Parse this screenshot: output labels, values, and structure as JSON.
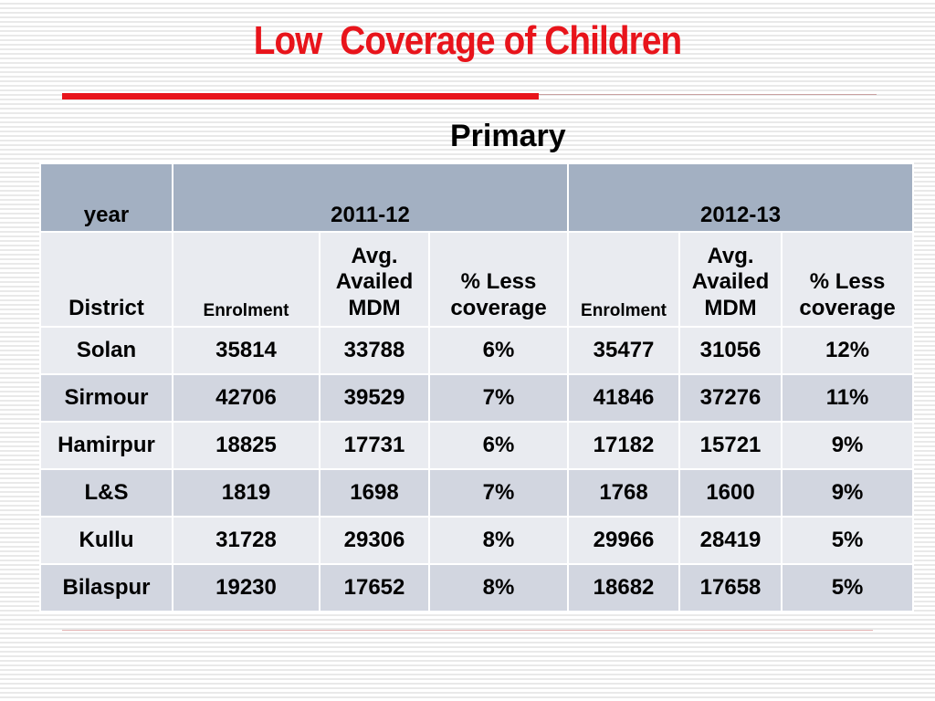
{
  "slide": {
    "title": "Low  Coverage of Children",
    "subtitle": "Primary"
  },
  "table": {
    "year_label": "year",
    "years": [
      "2011-12",
      "2012-13"
    ],
    "district_label": "District",
    "col_enrolment": "Enrolment",
    "col_avg_mdm": "Avg. Availed MDM",
    "col_less": "% Less coverage",
    "rows": [
      {
        "district": "Solan",
        "enr1": "35814",
        "mdm1": "33788",
        "less1": "6%",
        "enr2": "35477",
        "mdm2": "31056",
        "less2": "12%"
      },
      {
        "district": "Sirmour",
        "enr1": "42706",
        "mdm1": "39529",
        "less1": "7%",
        "enr2": "41846",
        "mdm2": "37276",
        "less2": "11%"
      },
      {
        "district": "Hamirpur",
        "enr1": "18825",
        "mdm1": "17731",
        "less1": "6%",
        "enr2": "17182",
        "mdm2": "15721",
        "less2": "9%"
      },
      {
        "district": "L&S",
        "enr1": "1819",
        "mdm1": "1698",
        "less1": "7%",
        "enr2": "1768",
        "mdm2": "1600",
        "less2": "9%"
      },
      {
        "district": "Kullu",
        "enr1": "31728",
        "mdm1": "29306",
        "less1": "8%",
        "enr2": "29966",
        "mdm2": "28419",
        "less2": "5%"
      },
      {
        "district": "Bilaspur",
        "enr1": "19230",
        "mdm1": "17652",
        "less1": "8%",
        "enr2": "18682",
        "mdm2": "17658",
        "less2": "5%"
      }
    ]
  },
  "colors": {
    "title": "#e8141b",
    "header_fill": "#a3b0c2",
    "row_light": "#e9ebf0",
    "row_dark": "#d2d6e0"
  }
}
